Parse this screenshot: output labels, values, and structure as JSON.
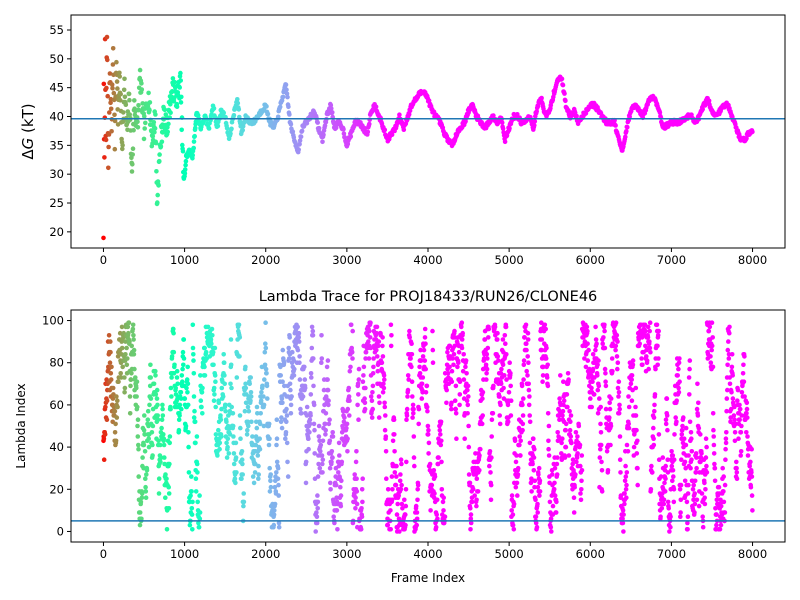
{
  "chart_data": [
    {
      "type": "scatter",
      "title": "",
      "xlabel": "",
      "ylabel": "ΔG (kT)",
      "ylabel_parts": {
        "delta": "Δ",
        "g": "G",
        "unit": " (kT)"
      },
      "xlim": [
        -400,
        8400
      ],
      "ylim": [
        17.2,
        57.6
      ],
      "xticks": [
        0,
        1000,
        2000,
        3000,
        4000,
        5000,
        6000,
        7000,
        8000
      ],
      "yticks": [
        20,
        25,
        30,
        35,
        40,
        45,
        50,
        55
      ],
      "reference_line": {
        "y": 39.6,
        "color": "#1f77b4"
      },
      "colormap": "rainbow (red at early frames → violet at late frames)",
      "x_max_frame": 8000,
      "trace_knots": [
        [
          0,
          20
        ],
        [
          5,
          50
        ],
        [
          10,
          26
        ],
        [
          20,
          52
        ],
        [
          30,
          35
        ],
        [
          45,
          55
        ],
        [
          60,
          30
        ],
        [
          80,
          48
        ],
        [
          100,
          38
        ],
        [
          120,
          52
        ],
        [
          140,
          36
        ],
        [
          160,
          50
        ],
        [
          180,
          40
        ],
        [
          200,
          47
        ],
        [
          230,
          35
        ],
        [
          260,
          45
        ],
        [
          290,
          37
        ],
        [
          320,
          44
        ],
        [
          350,
          30
        ],
        [
          380,
          42
        ],
        [
          420,
          38
        ],
        [
          450,
          47
        ],
        [
          500,
          38
        ],
        [
          550,
          44
        ],
        [
          600,
          36
        ],
        [
          640,
          40
        ],
        [
          660,
          25
        ],
        [
          700,
          35
        ],
        [
          740,
          40
        ],
        [
          780,
          38
        ],
        [
          820,
          42
        ],
        [
          860,
          45
        ],
        [
          900,
          43
        ],
        [
          950,
          46
        ],
        [
          990,
          28
        ],
        [
          1020,
          33
        ],
        [
          1060,
          34
        ],
        [
          1100,
          33
        ],
        [
          1150,
          41
        ],
        [
          1200,
          38
        ],
        [
          1250,
          40
        ],
        [
          1300,
          38
        ],
        [
          1350,
          42
        ],
        [
          1400,
          38
        ],
        [
          1450,
          41
        ],
        [
          1500,
          40
        ],
        [
          1550,
          36
        ],
        [
          1600,
          40
        ],
        [
          1650,
          43
        ],
        [
          1700,
          37
        ],
        [
          1750,
          40
        ],
        [
          1800,
          39
        ],
        [
          1850,
          39
        ],
        [
          1900,
          40
        ],
        [
          1950,
          41
        ],
        [
          2000,
          42
        ],
        [
          2050,
          39
        ],
        [
          2100,
          38
        ],
        [
          2150,
          40
        ],
        [
          2200,
          43
        ],
        [
          2250,
          45.5
        ],
        [
          2300,
          39
        ],
        [
          2350,
          36
        ],
        [
          2400,
          34
        ],
        [
          2450,
          38
        ],
        [
          2500,
          39
        ],
        [
          2550,
          40
        ],
        [
          2600,
          41
        ],
        [
          2650,
          38
        ],
        [
          2700,
          36
        ],
        [
          2750,
          40
        ],
        [
          2800,
          42
        ],
        [
          2850,
          38
        ],
        [
          2900,
          39
        ],
        [
          2950,
          38
        ],
        [
          3000,
          35
        ],
        [
          3050,
          37
        ],
        [
          3100,
          39
        ],
        [
          3150,
          39
        ],
        [
          3200,
          38
        ],
        [
          3250,
          37
        ],
        [
          3300,
          41
        ],
        [
          3350,
          42
        ],
        [
          3400,
          40
        ],
        [
          3450,
          38
        ],
        [
          3500,
          36
        ],
        [
          3550,
          37
        ],
        [
          3600,
          38
        ],
        [
          3650,
          40
        ],
        [
          3700,
          38
        ],
        [
          3750,
          40
        ],
        [
          3800,
          42
        ],
        [
          3850,
          43
        ],
        [
          3900,
          44
        ],
        [
          3950,
          44.5
        ],
        [
          4000,
          43
        ],
        [
          4050,
          41
        ],
        [
          4100,
          40
        ],
        [
          4150,
          39
        ],
        [
          4200,
          37
        ],
        [
          4250,
          36
        ],
        [
          4300,
          35
        ],
        [
          4350,
          37
        ],
        [
          4400,
          38
        ],
        [
          4450,
          39
        ],
        [
          4500,
          41
        ],
        [
          4550,
          42
        ],
        [
          4600,
          40
        ],
        [
          4650,
          39
        ],
        [
          4700,
          38
        ],
        [
          4750,
          39
        ],
        [
          4800,
          40
        ],
        [
          4850,
          39
        ],
        [
          4900,
          40
        ],
        [
          4950,
          36
        ],
        [
          5000,
          38
        ],
        [
          5050,
          40
        ],
        [
          5100,
          40
        ],
        [
          5150,
          39
        ],
        [
          5200,
          39
        ],
        [
          5250,
          40
        ],
        [
          5300,
          38
        ],
        [
          5350,
          42
        ],
        [
          5400,
          43
        ],
        [
          5450,
          40
        ],
        [
          5500,
          41
        ],
        [
          5550,
          44
        ],
        [
          5600,
          46.5
        ],
        [
          5650,
          46.5
        ],
        [
          5700,
          42
        ],
        [
          5750,
          40
        ],
        [
          5800,
          41
        ],
        [
          5850,
          39
        ],
        [
          5900,
          40
        ],
        [
          5950,
          41
        ],
        [
          6000,
          42
        ],
        [
          6050,
          42
        ],
        [
          6100,
          41
        ],
        [
          6150,
          40
        ],
        [
          6200,
          39
        ],
        [
          6250,
          39
        ],
        [
          6300,
          39
        ],
        [
          6350,
          36
        ],
        [
          6400,
          34
        ],
        [
          6450,
          38
        ],
        [
          6500,
          41
        ],
        [
          6550,
          42
        ],
        [
          6600,
          41
        ],
        [
          6650,
          40
        ],
        [
          6700,
          42
        ],
        [
          6750,
          43.5
        ],
        [
          6800,
          43
        ],
        [
          6850,
          41
        ],
        [
          6900,
          38
        ],
        [
          6950,
          38.5
        ],
        [
          7000,
          39
        ],
        [
          7050,
          39
        ],
        [
          7100,
          39
        ],
        [
          7150,
          39.5
        ],
        [
          7200,
          40
        ],
        [
          7250,
          40
        ],
        [
          7300,
          39
        ],
        [
          7350,
          40
        ],
        [
          7400,
          42
        ],
        [
          7450,
          43
        ],
        [
          7500,
          41
        ],
        [
          7550,
          40
        ],
        [
          7600,
          41
        ],
        [
          7650,
          42
        ],
        [
          7700,
          42
        ],
        [
          7750,
          40
        ],
        [
          7800,
          38
        ],
        [
          7850,
          36
        ],
        [
          7900,
          36
        ],
        [
          7950,
          37
        ],
        [
          8000,
          37.5
        ]
      ]
    },
    {
      "type": "scatter",
      "title": "Lambda Trace for PROJ18433/RUN26/CLONE46",
      "xlabel": "Frame Index",
      "ylabel": "Lambda Index",
      "xlim": [
        -400,
        8400
      ],
      "ylim": [
        -5,
        105
      ],
      "xticks": [
        0,
        1000,
        2000,
        3000,
        4000,
        5000,
        6000,
        7000,
        8000
      ],
      "yticks": [
        0,
        20,
        40,
        60,
        80,
        100
      ],
      "reference_line": {
        "y": 5,
        "color": "#1f77b4"
      },
      "colormap": "rainbow (red at early frames → violet at late frames)",
      "x_max_frame": 8000,
      "value_range": [
        0,
        99
      ]
    }
  ]
}
